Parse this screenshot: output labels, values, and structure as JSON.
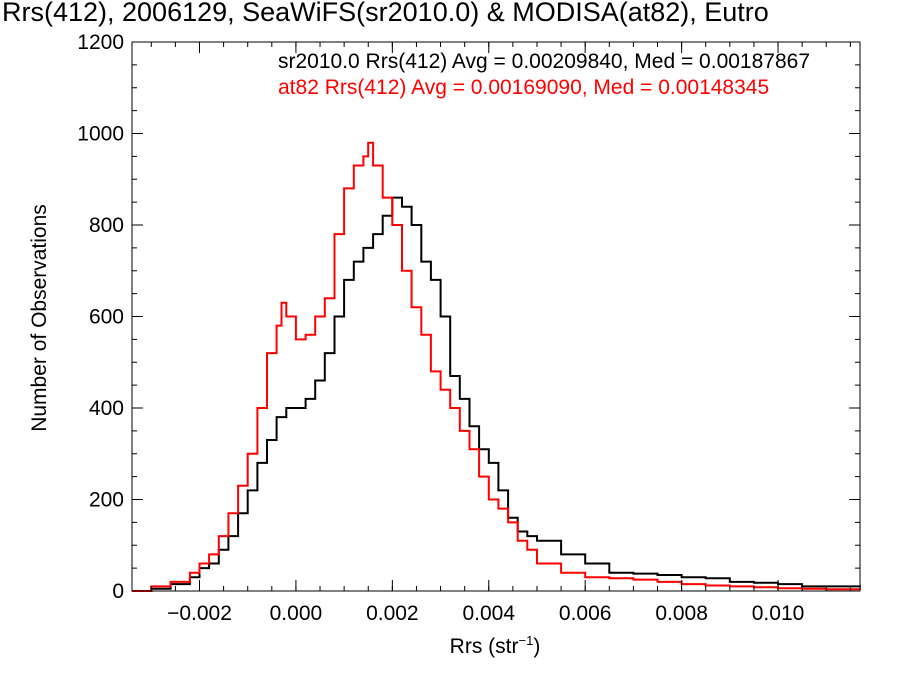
{
  "chart_data": {
    "type": "line",
    "title": "Rrs(412), 2006129, SeaWiFS(sr2010.0) & MODISA(at82), Eutro",
    "xlabel": "Rrs (str",
    "xlabel_exp": "−1",
    "xlabel_close": ")",
    "ylabel": "Number of Observations",
    "xlim": [
      -0.0034,
      0.0117
    ],
    "ylim": [
      0,
      1200
    ],
    "xticks": [
      -0.002,
      0.0,
      0.002,
      0.004,
      0.006,
      0.008,
      0.01
    ],
    "xtick_labels": [
      "−0.002",
      "0.000",
      "0.002",
      "0.004",
      "0.006",
      "0.008",
      "0.010"
    ],
    "yticks": [
      0,
      200,
      400,
      600,
      800,
      1000,
      1200
    ],
    "ytick_labels": [
      "0",
      "200",
      "400",
      "600",
      "800",
      "1000",
      "1200"
    ],
    "annotations": [
      "sr2010.0 Rrs(412) Avg = 0.00209840, Med = 0.00187867",
      "at82 Rrs(412) Avg = 0.00169090, Med = 0.00148345"
    ],
    "series": [
      {
        "color": "#000000",
        "x": [
          -0.0034,
          -0.003,
          -0.0026,
          -0.0022,
          -0.002,
          -0.0018,
          -0.0016,
          -0.0014,
          -0.0012,
          -0.001,
          -0.0008,
          -0.0006,
          -0.0004,
          -0.0002,
          0.0,
          0.0002,
          0.0004,
          0.0006,
          0.0008,
          0.001,
          0.0012,
          0.0014,
          0.0016,
          0.0018,
          0.002,
          0.0022,
          0.0024,
          0.0026,
          0.0028,
          0.003,
          0.0032,
          0.0034,
          0.0036,
          0.0038,
          0.004,
          0.0042,
          0.0044,
          0.0046,
          0.0048,
          0.005,
          0.0055,
          0.006,
          0.0065,
          0.007,
          0.0075,
          0.008,
          0.0085,
          0.009,
          0.0095,
          0.01,
          0.0105,
          0.011,
          0.0117
        ],
        "y": [
          0,
          5,
          15,
          30,
          50,
          60,
          90,
          120,
          170,
          220,
          280,
          330,
          380,
          400,
          400,
          420,
          460,
          520,
          600,
          680,
          720,
          750,
          780,
          820,
          860,
          840,
          800,
          720,
          680,
          600,
          470,
          420,
          360,
          310,
          280,
          220,
          160,
          130,
          120,
          110,
          80,
          60,
          40,
          38,
          35,
          30,
          28,
          20,
          18,
          15,
          10,
          10,
          8
        ]
      },
      {
        "color": "#ff0000",
        "x": [
          -0.0034,
          -0.003,
          -0.0026,
          -0.0022,
          -0.002,
          -0.0018,
          -0.0016,
          -0.0014,
          -0.0012,
          -0.001,
          -0.0008,
          -0.0006,
          -0.0004,
          -0.0003,
          -0.0002,
          0.0,
          0.0002,
          0.0004,
          0.0006,
          0.0008,
          0.001,
          0.0012,
          0.0014,
          0.0015,
          0.0016,
          0.0018,
          0.002,
          0.0022,
          0.0024,
          0.0026,
          0.0028,
          0.003,
          0.0032,
          0.0034,
          0.0036,
          0.0038,
          0.004,
          0.0042,
          0.0044,
          0.0046,
          0.0048,
          0.005,
          0.0055,
          0.006,
          0.0065,
          0.007,
          0.0075,
          0.008,
          0.0085,
          0.009,
          0.0095,
          0.01,
          0.0105,
          0.011,
          0.0117
        ],
        "y": [
          0,
          10,
          20,
          40,
          60,
          80,
          120,
          170,
          230,
          300,
          400,
          520,
          580,
          630,
          600,
          550,
          560,
          600,
          640,
          780,
          880,
          930,
          950,
          980,
          930,
          860,
          800,
          700,
          620,
          560,
          480,
          440,
          400,
          350,
          310,
          250,
          200,
          180,
          150,
          110,
          90,
          60,
          40,
          30,
          28,
          25,
          20,
          15,
          12,
          10,
          8,
          6,
          5,
          4,
          3
        ]
      }
    ]
  }
}
